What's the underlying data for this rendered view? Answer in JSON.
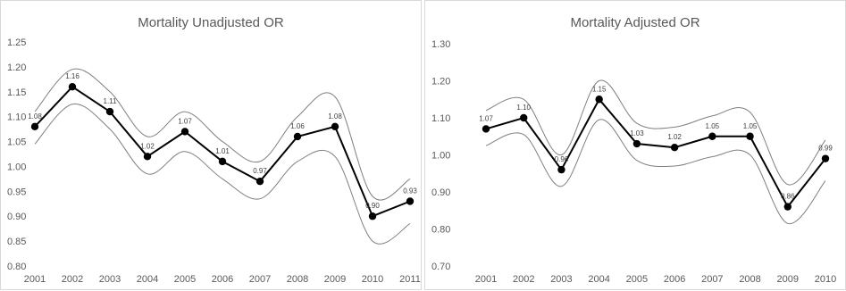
{
  "chart_data": [
    {
      "type": "line",
      "title": "Mortality Unadjusted OR",
      "xlabel": "",
      "ylabel": "",
      "categories": [
        "2001",
        "2002",
        "2003",
        "2004",
        "2005",
        "2006",
        "2007",
        "2008",
        "2009",
        "2010",
        "2011"
      ],
      "ylim": [
        0.8,
        1.25
      ],
      "yticks": [
        "0.80",
        "0.85",
        "0.90",
        "0.95",
        "1.00",
        "1.05",
        "1.10",
        "1.15",
        "1.20",
        "1.25"
      ],
      "series": [
        {
          "role": "estimate",
          "values": [
            1.08,
            1.16,
            1.11,
            1.02,
            1.07,
            1.01,
            0.97,
            1.06,
            1.08,
            0.9,
            0.93
          ],
          "labels": [
            "1.08",
            "1.16",
            "1.11",
            "1.02",
            "1.07",
            "1.01",
            "0.97",
            "1.06",
            "1.08",
            "0.90",
            "0.93"
          ]
        },
        {
          "role": "upper",
          "values": [
            1.11,
            1.195,
            1.15,
            1.06,
            1.11,
            1.05,
            1.01,
            1.1,
            1.14,
            0.94,
            0.975
          ]
        },
        {
          "role": "lower",
          "values": [
            1.045,
            1.125,
            1.075,
            0.985,
            1.03,
            0.975,
            0.935,
            1.01,
            1.02,
            0.85,
            0.885
          ]
        }
      ],
      "grid": false,
      "legend": "none",
      "line_color": "#000000",
      "ci_color": "#7f7f7f"
    },
    {
      "type": "line",
      "title": "Mortality Adjusted OR",
      "xlabel": "",
      "ylabel": "",
      "categories": [
        "2001",
        "2002",
        "2003",
        "2004",
        "2005",
        "2006",
        "2007",
        "2008",
        "2009",
        "2010"
      ],
      "ylim": [
        0.7,
        1.3
      ],
      "yticks": [
        "0.70",
        "0.80",
        "0.90",
        "1.00",
        "1.10",
        "1.20",
        "1.30"
      ],
      "series": [
        {
          "role": "estimate",
          "values": [
            1.07,
            1.1,
            0.96,
            1.15,
            1.03,
            1.02,
            1.05,
            1.05,
            0.86,
            0.99
          ],
          "labels": [
            "1.07",
            "1.10",
            "0.96",
            "1.15",
            "1.03",
            "1.02",
            "1.05",
            "1.05",
            "0.86",
            "0.99"
          ]
        },
        {
          "role": "upper",
          "values": [
            1.12,
            1.15,
            1.0,
            1.2,
            1.085,
            1.075,
            1.105,
            1.115,
            0.92,
            1.04
          ]
        },
        {
          "role": "lower",
          "values": [
            1.025,
            1.055,
            0.915,
            1.095,
            0.985,
            0.97,
            0.995,
            1.0,
            0.815,
            0.93
          ]
        }
      ],
      "grid": false,
      "legend": "none",
      "line_color": "#000000",
      "ci_color": "#7f7f7f"
    }
  ]
}
